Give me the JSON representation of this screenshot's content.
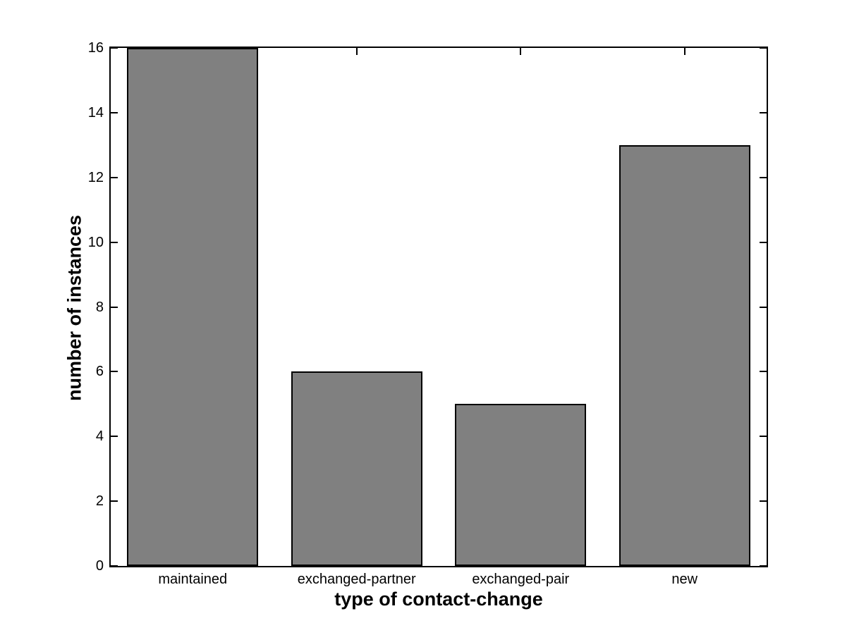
{
  "chart_data": {
    "type": "bar",
    "title": "",
    "categories": [
      "maintained",
      "exchanged-partner",
      "exchanged-pair",
      "new"
    ],
    "values": [
      16,
      6,
      5,
      13
    ],
    "xlabel": "type of contact-change",
    "ylabel": "number of instances",
    "ylim": [
      0,
      16
    ],
    "yticks": [
      0,
      2,
      4,
      6,
      8,
      10,
      12,
      14,
      16
    ],
    "grid": false,
    "legend": "none",
    "bar_width_fraction": 0.8,
    "colors": {
      "bar_fill": "#808080",
      "bar_edge": "#000000",
      "axis": "#000000",
      "background": "#ffffff",
      "text": "#000000"
    }
  }
}
